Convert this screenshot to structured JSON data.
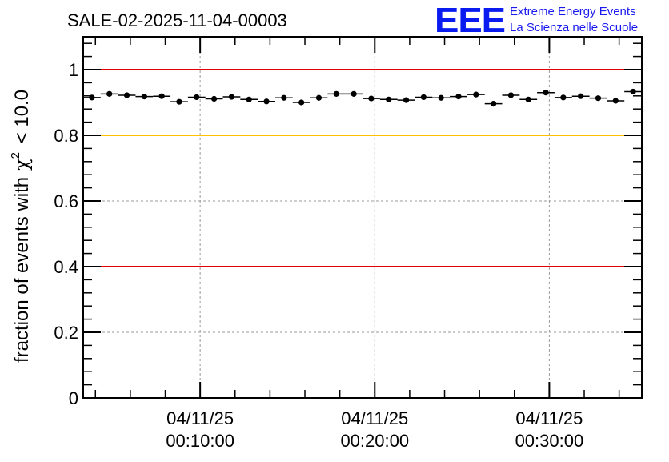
{
  "chart_data": {
    "type": "scatter",
    "title": "SALE-02-2025-11-04-00003",
    "ylabel": "fraction of events with",
    "ylabel_symbol": "χ",
    "ylabel_exponent": "2",
    "ylabel_suffix": " < 10.0",
    "xlabel": "",
    "ylim": [
      0,
      1.1
    ],
    "xlim_minutes": [
      3.3,
      35.3
    ],
    "grid": true,
    "y_ticks": [
      {
        "value": 0,
        "label": "0"
      },
      {
        "value": 0.2,
        "label": "0.2"
      },
      {
        "value": 0.4,
        "label": "0.4"
      },
      {
        "value": 0.6,
        "label": "0.6"
      },
      {
        "value": 0.8,
        "label": "0.8"
      },
      {
        "value": 1.0,
        "label": "1"
      }
    ],
    "x_ticks": [
      {
        "minutes": 10,
        "date": "04/11/25",
        "time": "00:10:00"
      },
      {
        "minutes": 20,
        "date": "04/11/25",
        "time": "00:20:00"
      },
      {
        "minutes": 30,
        "date": "04/11/25",
        "time": "00:30:00"
      }
    ],
    "reference_lines": [
      {
        "value": 1.0,
        "color": "#e00000"
      },
      {
        "value": 0.8,
        "color": "#ffc000"
      },
      {
        "value": 0.4,
        "color": "#e00000"
      }
    ],
    "series": [
      {
        "name": "fraction",
        "bin_width_minutes": 1.0,
        "marker_color": "#000000",
        "x_minutes": [
          3.8,
          4.8,
          5.8,
          6.8,
          7.8,
          8.8,
          9.8,
          10.8,
          11.8,
          12.8,
          13.8,
          14.8,
          15.8,
          16.8,
          17.8,
          18.8,
          19.8,
          20.8,
          21.8,
          22.8,
          23.8,
          24.8,
          25.8,
          26.8,
          27.8,
          28.8,
          29.8,
          30.8,
          31.8,
          32.8,
          33.8,
          34.8
        ],
        "y": [
          0.915,
          0.926,
          0.922,
          0.918,
          0.919,
          0.902,
          0.916,
          0.911,
          0.917,
          0.909,
          0.903,
          0.914,
          0.9,
          0.914,
          0.926,
          0.926,
          0.912,
          0.909,
          0.907,
          0.916,
          0.914,
          0.918,
          0.924,
          0.896,
          0.922,
          0.909,
          0.93,
          0.915,
          0.919,
          0.913,
          0.905,
          0.933
        ]
      }
    ]
  },
  "logo": {
    "mark": "EEE",
    "line1": "Extreme Energy Events",
    "line2": "La Scienza nelle Scuole",
    "color": "#0a1bf0"
  }
}
